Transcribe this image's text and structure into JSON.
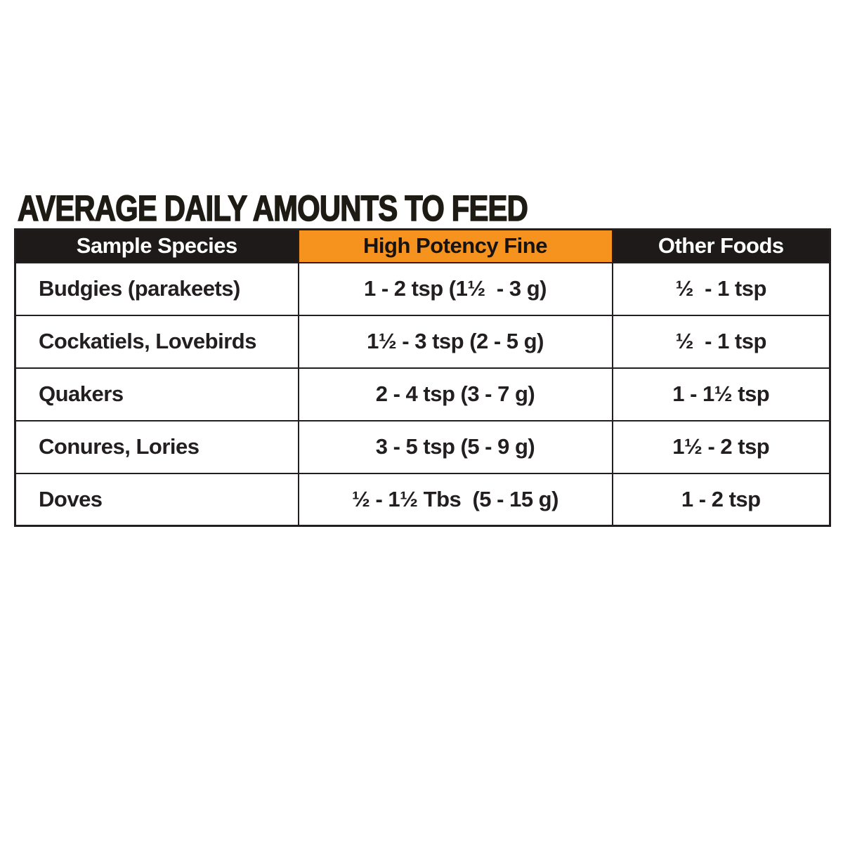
{
  "title": "AVERAGE DAILY AMOUNTS TO FEED",
  "colors": {
    "accent_orange": "#f6921e",
    "header_black": "#1d1a19",
    "text_black": "#231f20",
    "background": "#ffffff"
  },
  "table": {
    "columns": [
      {
        "label": "Sample Species"
      },
      {
        "label": "High Potency Fine"
      },
      {
        "label": "Other Foods"
      }
    ],
    "rows": [
      {
        "species": "Budgies (parakeets)",
        "high_potency_fine": "1 - 2 tsp (1½  - 3 g)",
        "other_foods": "½  - 1 tsp"
      },
      {
        "species": "Cockatiels, Lovebirds",
        "high_potency_fine": "1½ - 3 tsp (2 - 5 g)",
        "other_foods": "½  - 1 tsp"
      },
      {
        "species": "Quakers",
        "high_potency_fine": "2 - 4 tsp (3 - 7 g)",
        "other_foods": "1 - 1½ tsp"
      },
      {
        "species": "Conures, Lories",
        "high_potency_fine": "3 - 5 tsp (5 - 9 g)",
        "other_foods": "1½ - 2 tsp"
      },
      {
        "species": "Doves",
        "high_potency_fine": "½ - 1½ Tbs  (5 - 15 g)",
        "other_foods": "1 - 2 tsp"
      }
    ]
  },
  "chart_data": {
    "type": "table",
    "title": "AVERAGE DAILY AMOUNTS TO FEED",
    "columns": [
      "Sample Species",
      "High Potency Fine",
      "Other Foods"
    ],
    "rows": [
      [
        "Budgies (parakeets)",
        "1 - 2 tsp (1½ - 3 g)",
        "½ - 1 tsp"
      ],
      [
        "Cockatiels, Lovebirds",
        "1½ - 3 tsp (2 - 5 g)",
        "½ - 1 tsp"
      ],
      [
        "Quakers",
        "2 - 4 tsp (3 - 7 g)",
        "1 - 1½ tsp"
      ],
      [
        "Conures, Lories",
        "3 - 5 tsp (5 - 9 g)",
        "1½ - 2 tsp"
      ],
      [
        "Doves",
        "½ - 1½ Tbs (5 - 15 g)",
        "1 - 2 tsp"
      ]
    ]
  }
}
